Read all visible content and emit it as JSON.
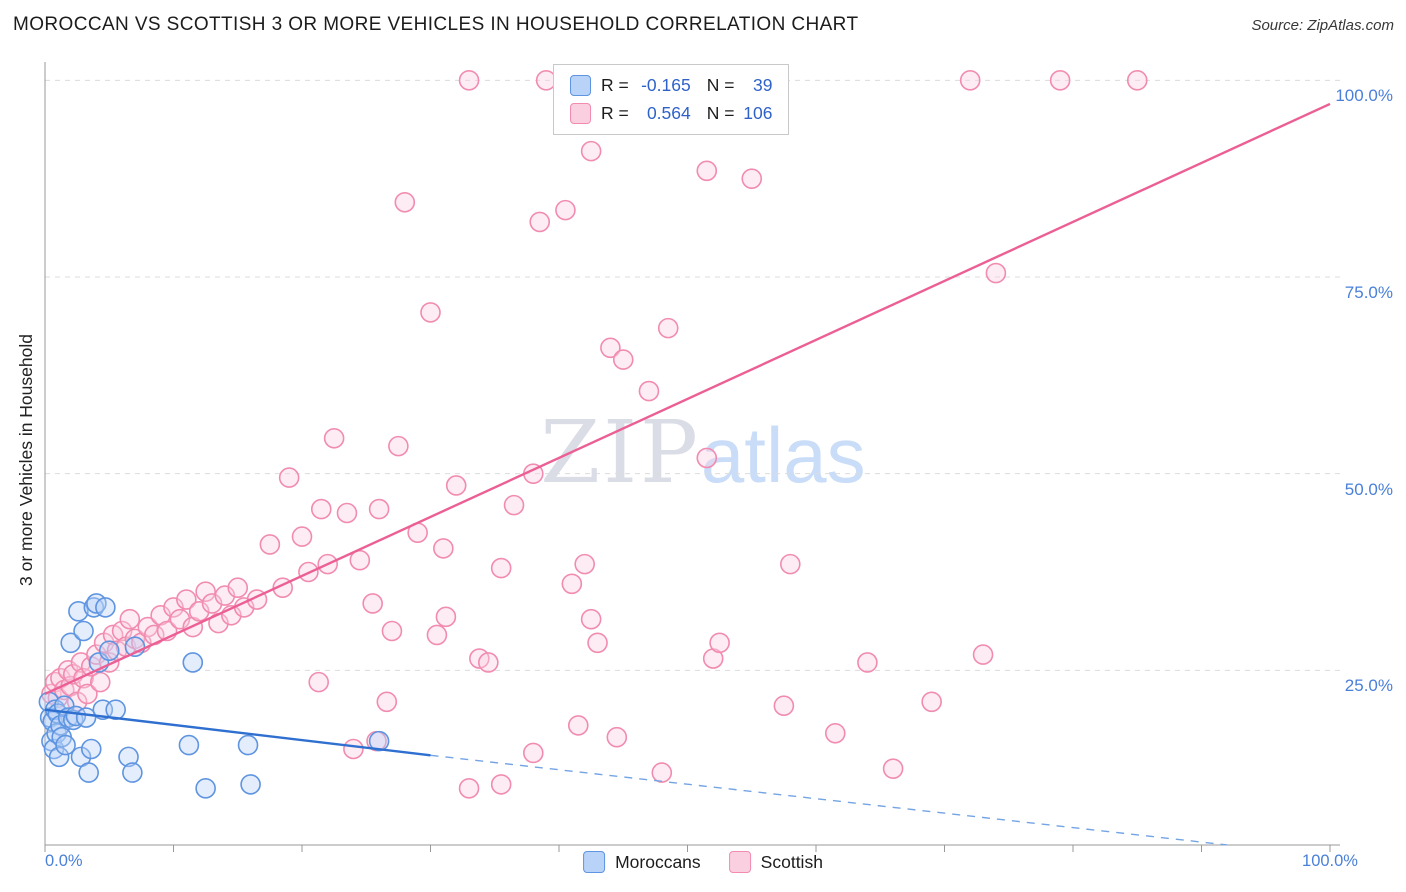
{
  "header": {
    "title": "MOROCCAN VS SCOTTISH 3 OR MORE VEHICLES IN HOUSEHOLD CORRELATION CHART",
    "source": "Source: ZipAtlas.com"
  },
  "watermark": {
    "zip": "ZIP",
    "atlas": "atlas"
  },
  "axes": {
    "y_label": "3 or more Vehicles in Household",
    "y_ticks": [
      "100.0%",
      "75.0%",
      "50.0%",
      "25.0%"
    ],
    "x_tick_left": "0.0%",
    "x_tick_right": "100.0%"
  },
  "legend_box": {
    "rows": [
      {
        "series": "Moroccans",
        "r_label": "R =",
        "r_value": "-0.165",
        "n_label": "N =",
        "n_value": "39"
      },
      {
        "series": "Scottish",
        "r_label": "R =",
        "r_value": "0.564",
        "n_label": "N =",
        "n_value": "106"
      }
    ]
  },
  "bottom_legend": [
    {
      "label": "Moroccans"
    },
    {
      "label": "Scottish"
    }
  ],
  "colors": {
    "moroccan_stroke": "#5e94e0",
    "moroccan_fill": "#b9d3f8",
    "moroccan_line": "#2e6fd0",
    "moroccan_dash": "#74a4e4",
    "scottish_stroke": "#f18bb0",
    "scottish_fill": "#fad0e0",
    "scottish_line": "#ec5f94",
    "grid": "#dcdcdc",
    "axis": "#999999",
    "tick_label": "#4a80d9",
    "value_blue": "#2f62c9"
  },
  "chart_data": {
    "type": "scatter",
    "title": "MOROCCAN VS SCOTTISH 3 OR MORE VEHICLES IN HOUSEHOLD CORRELATION CHART",
    "xlabel": "",
    "ylabel": "3 or more Vehicles in Household",
    "xlim": [
      0,
      100
    ],
    "ylim": [
      0,
      105
    ],
    "gridlines_y": [
      25,
      50,
      75,
      100
    ],
    "legend_position": "top-center",
    "series": [
      {
        "name": "Moroccans",
        "R": -0.165,
        "N": 39,
        "trend": {
          "solid": [
            [
              0,
              20
            ],
            [
              30,
              14.2
            ]
          ],
          "dashed": [
            [
              30,
              14.2
            ],
            [
              92,
              2.8
            ]
          ]
        },
        "points": [
          [
            0.3,
            21
          ],
          [
            0.4,
            19
          ],
          [
            0.5,
            16
          ],
          [
            0.6,
            18.5
          ],
          [
            0.7,
            15
          ],
          [
            0.8,
            20
          ],
          [
            0.9,
            17
          ],
          [
            1.0,
            19.5
          ],
          [
            1.1,
            14
          ],
          [
            1.2,
            18
          ],
          [
            1.3,
            16.5
          ],
          [
            1.5,
            20.5
          ],
          [
            1.6,
            15.5
          ],
          [
            1.8,
            19
          ],
          [
            2.0,
            28.5
          ],
          [
            2.2,
            18.7
          ],
          [
            2.4,
            19.2
          ],
          [
            2.6,
            32.5
          ],
          [
            2.8,
            14
          ],
          [
            3.0,
            30
          ],
          [
            3.2,
            19
          ],
          [
            3.4,
            12
          ],
          [
            3.6,
            15
          ],
          [
            3.8,
            33
          ],
          [
            4.0,
            33.5
          ],
          [
            4.2,
            26
          ],
          [
            4.5,
            20
          ],
          [
            4.7,
            33
          ],
          [
            5.0,
            27.5
          ],
          [
            5.5,
            20
          ],
          [
            6.5,
            14
          ],
          [
            6.8,
            12
          ],
          [
            7.0,
            28
          ],
          [
            11.2,
            15.5
          ],
          [
            11.5,
            26
          ],
          [
            12.5,
            10
          ],
          [
            15.8,
            15.5
          ],
          [
            16.0,
            10.5
          ],
          [
            26.0,
            16
          ]
        ]
      },
      {
        "name": "Scottish",
        "R": 0.564,
        "N": 106,
        "trend": {
          "solid": [
            [
              0,
              22
            ],
            [
              100,
              97
            ]
          ]
        },
        "points": [
          [
            0.5,
            22
          ],
          [
            0.8,
            23.5
          ],
          [
            1.0,
            21.5
          ],
          [
            1.2,
            24
          ],
          [
            1.5,
            22.5
          ],
          [
            1.8,
            25
          ],
          [
            2.0,
            23
          ],
          [
            2.2,
            24.5
          ],
          [
            2.5,
            21
          ],
          [
            2.8,
            26
          ],
          [
            3.0,
            24
          ],
          [
            3.3,
            22
          ],
          [
            3.6,
            25.5
          ],
          [
            4.0,
            27
          ],
          [
            4.3,
            23.5
          ],
          [
            4.6,
            28.5
          ],
          [
            5.0,
            26
          ],
          [
            5.3,
            29.5
          ],
          [
            5.6,
            27.5
          ],
          [
            6.0,
            30
          ],
          [
            6.3,
            28
          ],
          [
            6.6,
            31.5
          ],
          [
            7.0,
            29
          ],
          [
            7.5,
            28.5
          ],
          [
            8.0,
            30.5
          ],
          [
            8.5,
            29.5
          ],
          [
            9.0,
            32
          ],
          [
            9.5,
            30
          ],
          [
            10.0,
            33
          ],
          [
            10.5,
            31.5
          ],
          [
            11.0,
            34
          ],
          [
            11.5,
            30.5
          ],
          [
            12.0,
            32.5
          ],
          [
            12.5,
            35
          ],
          [
            13.0,
            33.5
          ],
          [
            13.5,
            31
          ],
          [
            14.0,
            34.5
          ],
          [
            14.5,
            32
          ],
          [
            15.0,
            35.5
          ],
          [
            15.5,
            33
          ],
          [
            16.5,
            34
          ],
          [
            17.5,
            41
          ],
          [
            18.5,
            35.5
          ],
          [
            19.0,
            49.5
          ],
          [
            20.0,
            42
          ],
          [
            20.5,
            37.5
          ],
          [
            21.5,
            45.5
          ],
          [
            21.3,
            23.5
          ],
          [
            22.0,
            38.5
          ],
          [
            22.5,
            54.5
          ],
          [
            23.5,
            45
          ],
          [
            24.0,
            15
          ],
          [
            24.5,
            39
          ],
          [
            25.5,
            33.5
          ],
          [
            25.8,
            16
          ],
          [
            26.0,
            45.5
          ],
          [
            26.6,
            21
          ],
          [
            27.0,
            30
          ],
          [
            27.5,
            53.5
          ],
          [
            28.0,
            84.5
          ],
          [
            29.0,
            42.5
          ],
          [
            30.0,
            70.5
          ],
          [
            30.5,
            29.5
          ],
          [
            31.0,
            40.5
          ],
          [
            31.2,
            31.8
          ],
          [
            32.0,
            48.5
          ],
          [
            33.0,
            100
          ],
          [
            33.8,
            26.5
          ],
          [
            34.5,
            26
          ],
          [
            35.5,
            38
          ],
          [
            35.5,
            10.5
          ],
          [
            36.5,
            46
          ],
          [
            38.0,
            50
          ],
          [
            38.0,
            14.5
          ],
          [
            38.5,
            82
          ],
          [
            39.0,
            100
          ],
          [
            40.5,
            83.5
          ],
          [
            41.0,
            36
          ],
          [
            41.5,
            18
          ],
          [
            42.0,
            38.5
          ],
          [
            42.5,
            91
          ],
          [
            42.5,
            31.5
          ],
          [
            43.0,
            28.5
          ],
          [
            44.0,
            66
          ],
          [
            44.5,
            16.5
          ],
          [
            45.0,
            64.5
          ],
          [
            47.0,
            60.5
          ],
          [
            48.0,
            12
          ],
          [
            48.5,
            68.5
          ],
          [
            51.5,
            88.5
          ],
          [
            51.5,
            52
          ],
          [
            52.0,
            26.5
          ],
          [
            52.5,
            28.5
          ],
          [
            55.0,
            87.5
          ],
          [
            57.5,
            20.5
          ],
          [
            58.0,
            38.5
          ],
          [
            61.5,
            17
          ],
          [
            64.0,
            26
          ],
          [
            66.0,
            12.5
          ],
          [
            69.0,
            21
          ],
          [
            72.0,
            100
          ],
          [
            73.0,
            27
          ],
          [
            74.0,
            75.5
          ],
          [
            79.0,
            100
          ],
          [
            85.0,
            100
          ],
          [
            33.0,
            10
          ]
        ]
      }
    ]
  }
}
